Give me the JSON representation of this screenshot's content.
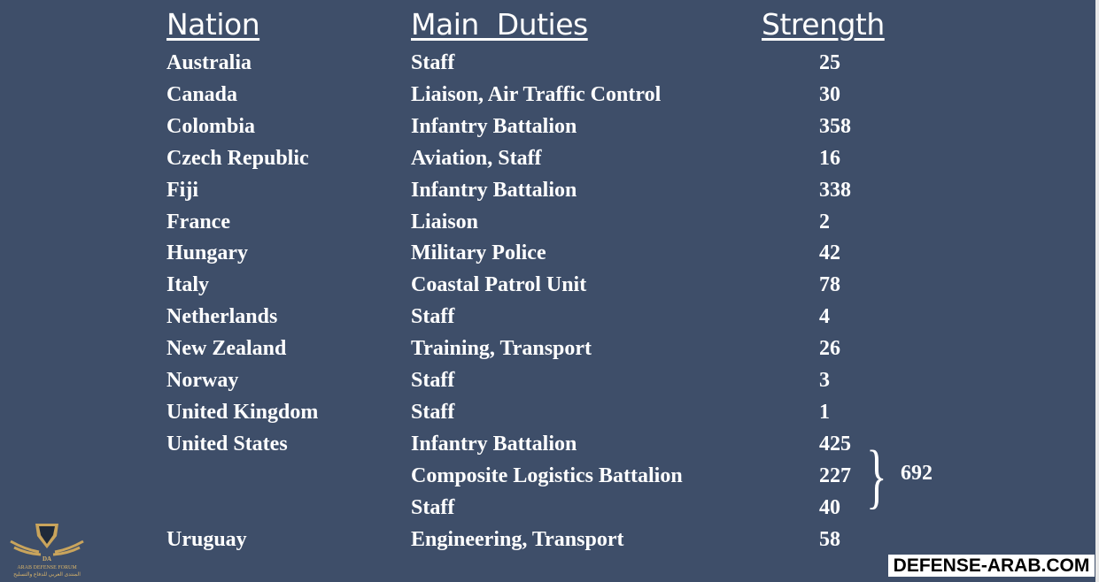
{
  "headers": {
    "nation": "Nation",
    "duties": "Main  Duties",
    "strength": "Strength"
  },
  "rows": [
    {
      "nation": "Australia",
      "duties": "Staff",
      "strength": "25"
    },
    {
      "nation": "Canada",
      "duties": "Liaison, Air Traffic Control",
      "strength": "30"
    },
    {
      "nation": "Colombia",
      "duties": "Infantry Battalion",
      "strength": "358"
    },
    {
      "nation": "Czech Republic",
      "duties": "Aviation, Staff",
      "strength": "16"
    },
    {
      "nation": "Fiji",
      "duties": "Infantry Battalion",
      "strength": "338"
    },
    {
      "nation": "France",
      "duties": "Liaison",
      "strength": "2"
    },
    {
      "nation": "Hungary",
      "duties": "Military Police",
      "strength": "42"
    },
    {
      "nation": "Italy",
      "duties": "Coastal Patrol Unit",
      "strength": "78"
    },
    {
      "nation": "Netherlands",
      "duties": "Staff",
      "strength": "4"
    },
    {
      "nation": "New Zealand",
      "duties": "Training, Transport",
      "strength": "26"
    },
    {
      "nation": "Norway",
      "duties": "Staff",
      "strength": "3"
    },
    {
      "nation": "United Kingdom",
      "duties": "Staff",
      "strength": "1"
    },
    {
      "nation": "United States",
      "duties": "Infantry Battalion",
      "strength": "425"
    },
    {
      "nation": "",
      "duties": "Composite Logistics Battalion",
      "strength": "227"
    },
    {
      "nation": "",
      "duties": "Staff",
      "strength": "40"
    },
    {
      "nation": "Uruguay",
      "duties": "Engineering, Transport",
      "strength": "58"
    }
  ],
  "us_total": "692",
  "brace": "}",
  "watermark": "DEFENSE-ARAB.COM",
  "logo": {
    "title": "ARAB DEFENSE FORUM",
    "initials": "DA",
    "arabic": "المنتدى العربي للدفاع والتسليح"
  }
}
